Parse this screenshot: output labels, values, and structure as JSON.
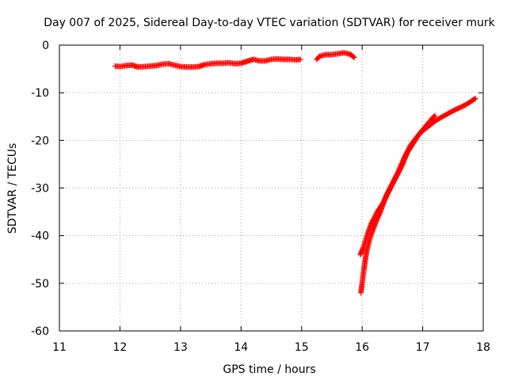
{
  "chart_data": {
    "type": "scatter",
    "title": "Day 007 of 2025, Sidereal Day-to-day VTEC variation (SDTVAR) for receiver murk",
    "xlabel": "GPS time / hours",
    "ylabel": "SDTVAR / TECUs",
    "xlim": [
      11,
      18
    ],
    "ylim": [
      -60,
      0
    ],
    "xticks": [
      11,
      12,
      13,
      14,
      15,
      16,
      17,
      18
    ],
    "yticks": [
      0,
      -10,
      -20,
      -30,
      -40,
      -50,
      -60
    ],
    "grid": true,
    "marker": "+",
    "series": [
      {
        "name": "segment-1",
        "color": "#ff0000",
        "points": [
          [
            11.92,
            -4.4
          ],
          [
            12.0,
            -4.5
          ],
          [
            12.1,
            -4.3
          ],
          [
            12.2,
            -4.2
          ],
          [
            12.3,
            -4.6
          ],
          [
            12.4,
            -4.5
          ],
          [
            12.5,
            -4.4
          ],
          [
            12.6,
            -4.3
          ],
          [
            12.7,
            -4.0
          ],
          [
            12.8,
            -3.9
          ],
          [
            12.9,
            -4.2
          ],
          [
            13.0,
            -4.5
          ],
          [
            13.1,
            -4.6
          ],
          [
            13.2,
            -4.6
          ],
          [
            13.3,
            -4.5
          ],
          [
            13.4,
            -4.1
          ],
          [
            13.5,
            -3.9
          ],
          [
            13.6,
            -3.8
          ],
          [
            13.7,
            -3.8
          ],
          [
            13.8,
            -3.7
          ],
          [
            13.9,
            -3.9
          ],
          [
            14.0,
            -3.8
          ],
          [
            14.1,
            -3.4
          ],
          [
            14.2,
            -3.0
          ],
          [
            14.3,
            -3.3
          ],
          [
            14.4,
            -3.3
          ],
          [
            14.5,
            -3.0
          ],
          [
            14.6,
            -2.9
          ],
          [
            14.7,
            -3.0
          ],
          [
            14.8,
            -3.0
          ],
          [
            14.9,
            -3.1
          ],
          [
            14.98,
            -3.0
          ]
        ]
      },
      {
        "name": "segment-2",
        "color": "#ff0000",
        "points": [
          [
            15.25,
            -3.0
          ],
          [
            15.3,
            -2.3
          ],
          [
            15.4,
            -2.0
          ],
          [
            15.5,
            -2.0
          ],
          [
            15.6,
            -1.8
          ],
          [
            15.7,
            -1.6
          ],
          [
            15.8,
            -1.9
          ],
          [
            15.87,
            -2.6
          ]
        ]
      },
      {
        "name": "segment-3",
        "color": "#ff0000",
        "points": [
          [
            15.98,
            -52.0
          ],
          [
            16.02,
            -48.0
          ],
          [
            16.07,
            -43.5
          ],
          [
            16.13,
            -40.5
          ],
          [
            16.2,
            -38.0
          ],
          [
            16.3,
            -35.0
          ],
          [
            16.4,
            -31.5
          ],
          [
            16.5,
            -29.0
          ],
          [
            16.6,
            -26.5
          ],
          [
            16.7,
            -23.5
          ],
          [
            16.8,
            -21.0
          ],
          [
            16.9,
            -19.3
          ],
          [
            17.0,
            -18.0
          ],
          [
            17.1,
            -17.0
          ],
          [
            17.2,
            -16.0
          ],
          [
            17.3,
            -15.2
          ],
          [
            17.4,
            -14.5
          ],
          [
            17.5,
            -13.8
          ],
          [
            17.6,
            -13.2
          ],
          [
            17.7,
            -12.6
          ],
          [
            17.8,
            -11.8
          ],
          [
            17.87,
            -11.2
          ]
        ]
      },
      {
        "name": "segment-4",
        "color": "#ff0000",
        "points": [
          [
            15.97,
            -44.0
          ],
          [
            16.02,
            -42.5
          ],
          [
            16.08,
            -40.0
          ],
          [
            16.15,
            -37.5
          ],
          [
            16.25,
            -35.0
          ],
          [
            16.35,
            -33.0
          ],
          [
            16.45,
            -30.5
          ],
          [
            16.55,
            -28.0
          ],
          [
            16.65,
            -25.5
          ],
          [
            16.75,
            -22.5
          ],
          [
            16.85,
            -20.5
          ],
          [
            16.95,
            -18.5
          ],
          [
            17.05,
            -17.0
          ],
          [
            17.15,
            -15.5
          ],
          [
            17.2,
            -14.8
          ]
        ]
      }
    ]
  }
}
